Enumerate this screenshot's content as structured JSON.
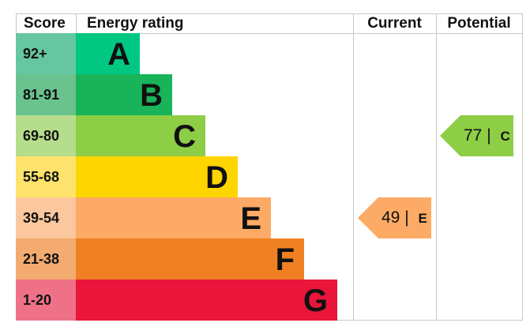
{
  "chart_data": {
    "type": "table",
    "headers": {
      "score": "Score",
      "rating": "Energy rating",
      "current": "Current",
      "potential": "Potential"
    },
    "bands": [
      {
        "letter": "A",
        "range": "92+",
        "color": "#00c781",
        "score_color": "#66c6a2"
      },
      {
        "letter": "B",
        "range": "81-91",
        "color": "#19b459",
        "score_color": "#6ac38e"
      },
      {
        "letter": "C",
        "range": "69-80",
        "color": "#8dce46",
        "score_color": "#b5dd8c"
      },
      {
        "letter": "D",
        "range": "55-68",
        "color": "#ffd500",
        "score_color": "#fde36b"
      },
      {
        "letter": "E",
        "range": "39-54",
        "color": "#fcaa65",
        "score_color": "#fcc79d"
      },
      {
        "letter": "F",
        "range": "21-38",
        "color": "#ef8023",
        "score_color": "#f3ab6f"
      },
      {
        "letter": "G",
        "range": "1-20",
        "color": "#e9153b",
        "score_color": "#ef7188"
      }
    ],
    "current": {
      "value": "49",
      "letter": "E",
      "color": "#fcaa65"
    },
    "potential": {
      "value": "77",
      "letter": "C",
      "color": "#8dce46"
    }
  }
}
